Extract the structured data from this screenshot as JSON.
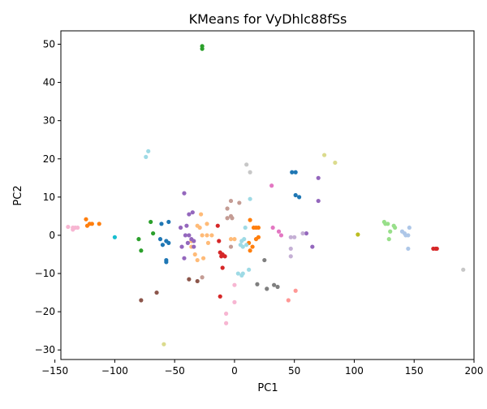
{
  "chart_data": {
    "type": "scatter",
    "title": "KMeans for VyDhlc88fSs",
    "xlabel": "PC1",
    "ylabel": "PC2",
    "xlim": [
      -145,
      200
    ],
    "ylim": [
      -32.5,
      53.5
    ],
    "xticks": [
      -150,
      -100,
      -50,
      0,
      50,
      100,
      150,
      200
    ],
    "yticks": [
      -30,
      -20,
      -10,
      0,
      10,
      20,
      30,
      40,
      50
    ],
    "grid": false,
    "legend": "none",
    "clusters": [
      {
        "color": "#1f77b4",
        "points": [
          [
            -61,
            3
          ],
          [
            -55,
            3.5
          ],
          [
            -62,
            -1
          ],
          [
            -60,
            -2.5
          ],
          [
            -57,
            -1.5
          ],
          [
            -55,
            -2
          ],
          [
            -57,
            -6.5
          ],
          [
            -57,
            -7
          ],
          [
            48,
            16.5
          ],
          [
            51,
            16.5
          ],
          [
            51,
            10.5
          ],
          [
            54,
            10
          ]
        ]
      },
      {
        "color": "#aec7e8",
        "points": [
          [
            140,
            1
          ],
          [
            143,
            0
          ],
          [
            145,
            0
          ],
          [
            142,
            0.5
          ],
          [
            146,
            2
          ],
          [
            145,
            -3.5
          ]
        ]
      },
      {
        "color": "#ff7f0e",
        "points": [
          [
            -124,
            4.2
          ],
          [
            -121,
            3
          ],
          [
            -119,
            3
          ],
          [
            -123,
            2.5
          ],
          [
            -113,
            3
          ],
          [
            13,
            4
          ],
          [
            16,
            2
          ],
          [
            18,
            2
          ],
          [
            20,
            2
          ],
          [
            18,
            -1
          ],
          [
            20,
            -0.5
          ],
          [
            12,
            -2
          ],
          [
            15,
            -3
          ],
          [
            13,
            -4
          ]
        ]
      },
      {
        "color": "#ffbb78",
        "points": [
          [
            -28,
            5.5
          ],
          [
            -31,
            2.5
          ],
          [
            -29,
            2
          ],
          [
            -23,
            3
          ],
          [
            -27,
            0
          ],
          [
            -23,
            0
          ],
          [
            -19,
            0
          ],
          [
            -22,
            -2
          ],
          [
            -26,
            -6
          ],
          [
            -33,
            -5
          ],
          [
            -31,
            -6.5
          ],
          [
            -36,
            -1.5
          ],
          [
            -36,
            -3
          ],
          [
            -3,
            -1
          ],
          [
            0,
            -1
          ]
        ]
      },
      {
        "color": "#2ca02c",
        "points": [
          [
            -70,
            3.5
          ],
          [
            -68,
            0.5
          ],
          [
            -80,
            -1
          ],
          [
            -78,
            -4
          ],
          [
            -27,
            49.5
          ],
          [
            -27,
            48.8
          ]
        ]
      },
      {
        "color": "#98df8a",
        "points": [
          [
            125,
            3.5
          ],
          [
            126,
            3
          ],
          [
            128,
            3
          ],
          [
            133,
            2.5
          ],
          [
            134,
            2
          ],
          [
            130,
            1
          ],
          [
            129,
            -1
          ]
        ]
      },
      {
        "color": "#d62728",
        "points": [
          [
            -14,
            2.5
          ],
          [
            -13,
            -1.5
          ],
          [
            -12,
            -4.5
          ],
          [
            -11,
            -5.5
          ],
          [
            -10,
            -5
          ],
          [
            -8,
            -5.5
          ],
          [
            -10,
            -8.5
          ],
          [
            -12,
            -16
          ],
          [
            166,
            -3.5
          ],
          [
            168,
            -3.5
          ],
          [
            169,
            -3.5
          ]
        ]
      },
      {
        "color": "#ff9896",
        "points": [
          [
            45,
            -17
          ],
          [
            51,
            -14.5
          ]
        ]
      },
      {
        "color": "#9467bd",
        "points": [
          [
            -42,
            11
          ],
          [
            -38,
            5.5
          ],
          [
            -35,
            6
          ],
          [
            -40,
            2.5
          ],
          [
            -45,
            2
          ],
          [
            -41,
            0
          ],
          [
            -38,
            0
          ],
          [
            -36,
            -1
          ],
          [
            -34,
            -1.5
          ],
          [
            -39,
            -2
          ],
          [
            -44,
            -3
          ],
          [
            -42,
            -6
          ],
          [
            -34,
            -3
          ],
          [
            70,
            15
          ],
          [
            70,
            9
          ],
          [
            60,
            0.5
          ],
          [
            65,
            -3
          ]
        ]
      },
      {
        "color": "#c5b0d5",
        "points": [
          [
            47,
            -0.5
          ],
          [
            50,
            -0.5
          ],
          [
            47,
            -3.5
          ],
          [
            47,
            -5.5
          ],
          [
            57,
            0.5
          ]
        ]
      },
      {
        "color": "#8c564b",
        "points": [
          [
            -78,
            -17
          ],
          [
            -65,
            -15
          ],
          [
            -38,
            -11.5
          ],
          [
            -31,
            -12
          ]
        ]
      },
      {
        "color": "#c49c94",
        "points": [
          [
            -3,
            9
          ],
          [
            4,
            8.5
          ],
          [
            -6,
            7
          ],
          [
            -6,
            4.5
          ],
          [
            -3,
            5
          ],
          [
            -2,
            4.5
          ],
          [
            -27,
            -11
          ],
          [
            -3,
            -3
          ]
        ]
      },
      {
        "color": "#e377c2",
        "points": [
          [
            31,
            13
          ],
          [
            32,
            2
          ],
          [
            37,
            1
          ],
          [
            39,
            0
          ]
        ]
      },
      {
        "color": "#f7b6d2",
        "points": [
          [
            -139,
            2.2
          ],
          [
            -135,
            1.5
          ],
          [
            -133,
            2
          ],
          [
            -131,
            2
          ],
          [
            -135,
            2
          ],
          [
            0,
            -13
          ],
          [
            0,
            -17.5
          ],
          [
            -7,
            -20.5
          ],
          [
            -7,
            -23
          ]
        ]
      },
      {
        "color": "#7f7f7f",
        "points": [
          [
            19,
            -12.8
          ],
          [
            25,
            -6.5
          ],
          [
            27,
            -14
          ],
          [
            33,
            -13
          ],
          [
            36,
            -13.5
          ]
        ]
      },
      {
        "color": "#c7c7c7",
        "points": [
          [
            10,
            18.5
          ],
          [
            13,
            16.5
          ],
          [
            191,
            -9
          ]
        ]
      },
      {
        "color": "#bcbd22",
        "points": [
          [
            103,
            0.2
          ]
        ]
      },
      {
        "color": "#dbdb8d",
        "points": [
          [
            75,
            21
          ],
          [
            84,
            19
          ],
          [
            -59,
            -28.5
          ]
        ]
      },
      {
        "color": "#17becf",
        "points": [
          [
            -100,
            -0.5
          ]
        ]
      },
      {
        "color": "#9edae5",
        "points": [
          [
            -72,
            22
          ],
          [
            -74,
            20.5
          ],
          [
            9,
            2
          ],
          [
            13,
            9.5
          ],
          [
            6,
            -1.5
          ],
          [
            8,
            -1
          ],
          [
            7,
            -3
          ],
          [
            10,
            -2.5
          ],
          [
            5,
            -2.5
          ],
          [
            3,
            -10
          ],
          [
            6,
            -10.5
          ],
          [
            7,
            -10
          ],
          [
            12,
            -9
          ]
        ]
      }
    ]
  }
}
